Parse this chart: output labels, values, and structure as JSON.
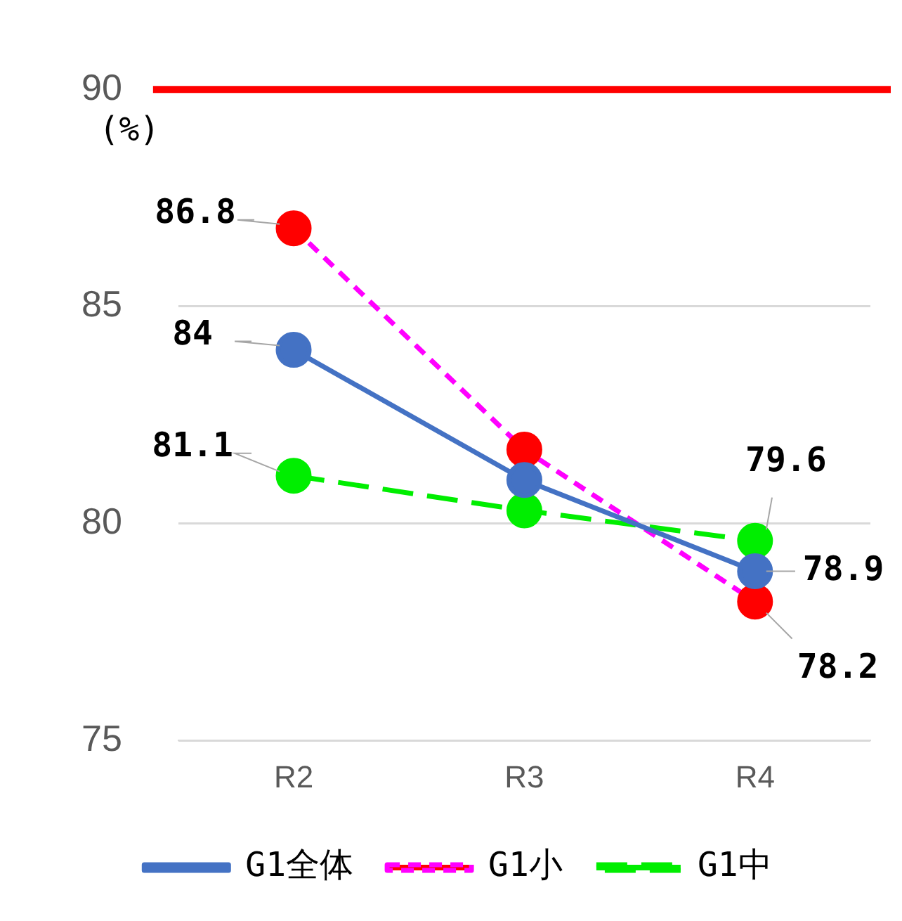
{
  "chart_data": {
    "type": "line",
    "ylabel": "(%)",
    "categories": [
      "R2",
      "R3",
      "R4"
    ],
    "series": [
      {
        "name": "G1全体",
        "color": "#4472c4",
        "values": [
          84,
          81,
          78.9
        ],
        "line_style": "solid",
        "value_labels": [
          "84",
          null,
          "78.9"
        ]
      },
      {
        "name": "G1小",
        "color": "#ff00ff",
        "colors": [
          "#ff0000",
          "#ff0000",
          "#ff0000"
        ],
        "values": [
          86.8,
          81.7,
          78.2
        ],
        "line_style": "dashed",
        "value_labels": [
          "86.8",
          null,
          "78.2"
        ]
      },
      {
        "name": "G1中",
        "color": "#00ee00",
        "values": [
          81.1,
          80.3,
          79.6
        ],
        "line_style": "dashed",
        "value_labels": [
          "81.1",
          null,
          "79.6"
        ]
      }
    ],
    "ylim": [
      75,
      90
    ],
    "yticks": [
      75,
      80,
      85,
      90
    ],
    "grid": "y",
    "legend": "bottom",
    "marker": "circle",
    "ref_lines": [
      {
        "axis": "y",
        "value": 90,
        "color": "#ff0000"
      }
    ]
  }
}
